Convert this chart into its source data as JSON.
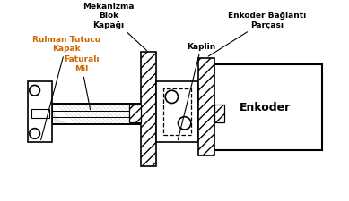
{
  "title": "",
  "background_color": "#ffffff",
  "labels": {
    "mekanizma": "Mekanizma\nBlok\nKapağı",
    "enkoder_baglanti": "Enkoder Bağlantı\nParçası",
    "enkoder": "Enkoder",
    "faturali_mil": "Faturalı\nMil",
    "rulman": "Rulman Tutucu\nKapak",
    "kaplin": "Kaplin"
  },
  "line_color": "#000000",
  "label_faturali_color": "#cc6600",
  "label_rulman_color": "#cc6600",
  "figsize": [
    3.89,
    2.26
  ],
  "dpi": 100
}
